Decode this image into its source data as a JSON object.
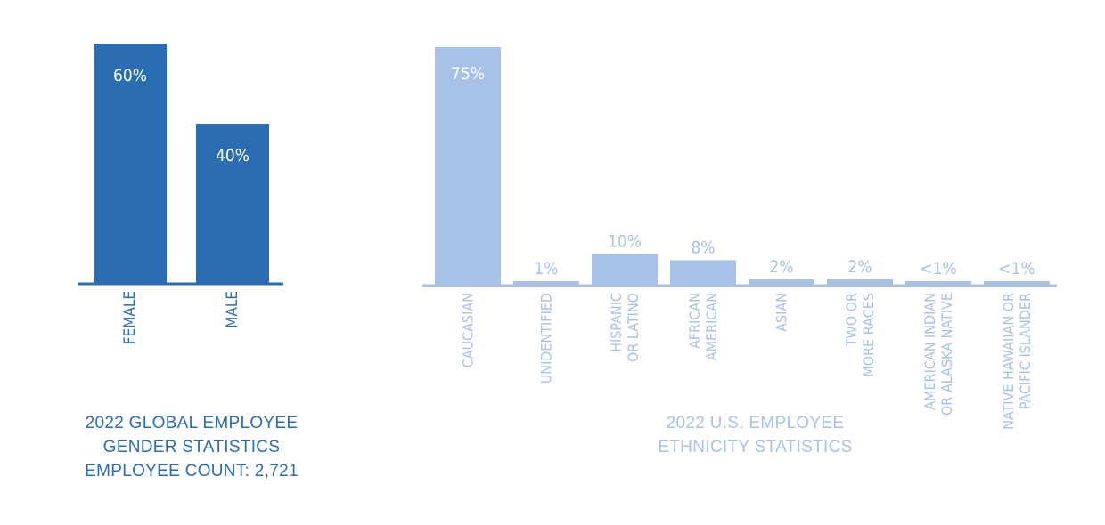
{
  "colors": {
    "gender": "#2a6db3",
    "ethnicity": "#a8c1e6",
    "bar_label": "#ffffff"
  },
  "chart_data": [
    {
      "type": "bar",
      "title": "2022 GLOBAL EMPLOYEE GENDER STATISTICS",
      "subtitle": "EMPLOYEE COUNT: 2,721",
      "categories": [
        [
          "FEMALE"
        ],
        [
          "MALE"
        ]
      ],
      "values": [
        60,
        40
      ],
      "labels": [
        "60%",
        "40%"
      ],
      "ylim": [
        0,
        62
      ]
    },
    {
      "type": "bar",
      "title": "2022 U.S. EMPLOYEE ETHNICITY STATISTICS",
      "categories": [
        [
          "CAUCASIAN"
        ],
        [
          "UNIDENTIFIED"
        ],
        [
          "HISPANIC",
          "OR LATINO"
        ],
        [
          "AFRICAN",
          "AMERICAN"
        ],
        [
          "ASIAN"
        ],
        [
          "TWO OR",
          "MORE RACES"
        ],
        [
          "AMERICAN INDIAN",
          "OR ALASKA NATIVE"
        ],
        [
          "NATIVE HAWAIIAN OR",
          "PACIFIC ISLANDER"
        ]
      ],
      "values": [
        75,
        1,
        10,
        8,
        2,
        2,
        0.5,
        0.5
      ],
      "labels": [
        "75%",
        "1%",
        "10%",
        "8%",
        "2%",
        "2%",
        "<1%",
        "<1%"
      ],
      "ylim": [
        0,
        75
      ]
    }
  ],
  "captions": {
    "gender": [
      "2022 GLOBAL EMPLOYEE",
      "GENDER STATISTICS",
      "EMPLOYEE COUNT: 2,721"
    ],
    "ethnicity": [
      "2022 U.S. EMPLOYEE",
      "ETHNICITY STATISTICS"
    ]
  }
}
